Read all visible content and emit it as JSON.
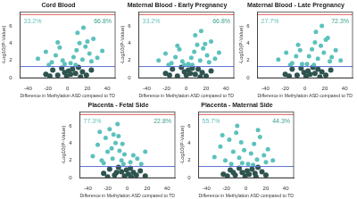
{
  "chart_data": [
    {
      "type": "scatter",
      "title": "Cord Blood",
      "x_label": "Difference in Methylation ASD compared to TD",
      "y_label": "-Log10(P-Value)",
      "xlim": [
        -48,
        48
      ],
      "xticks": [
        -40,
        -20,
        0,
        20,
        40
      ],
      "ylim": [
        0,
        7.6
      ],
      "yticks": [
        0,
        2,
        4,
        6
      ],
      "series": [
        {
          "color": "#2f5450",
          "x": [
            -22,
            -15,
            -10,
            -6,
            -3,
            -1,
            1,
            3,
            5,
            8,
            11,
            15,
            19,
            24,
            -18,
            13
          ],
          "y": [
            0.4,
            0.9,
            0.3,
            1.1,
            0.6,
            0.2,
            0.8,
            0.4,
            1.0,
            0.5,
            1.2,
            0.7,
            0.3,
            0.9,
            0.2,
            0.1
          ]
        },
        {
          "color": "#5cc1bd",
          "x": [
            -30,
            -22,
            -16,
            -12,
            -8,
            -5,
            -3,
            3,
            6,
            9,
            12,
            15,
            18,
            22,
            26,
            30,
            35,
            -19,
            10,
            16,
            20,
            24,
            8,
            -10
          ],
          "y": [
            2.2,
            3.0,
            1.8,
            2.6,
            3.5,
            2.0,
            1.6,
            1.7,
            2.4,
            3.2,
            4.0,
            2.1,
            3.6,
            2.8,
            4.5,
            2.3,
            3.1,
            1.5,
            5.2,
            5.8,
            4.2,
            1.9,
            1.5,
            4.1
          ]
        }
      ],
      "hlines": [
        {
          "y": 7.3,
          "color": "#e05a5a"
        },
        {
          "y": 1.3,
          "color": "#5b6fd6"
        }
      ],
      "annotations": [
        {
          "text": "33.2%",
          "side": "left",
          "color": "#66c2bd"
        },
        {
          "text": "66.8%",
          "side": "right",
          "color": "#3aa08c"
        }
      ]
    },
    {
      "type": "scatter",
      "title": "Maternal Blood - Early Pregnancy",
      "x_label": "Difference in Methylation ASD compared to TD",
      "y_label": "-Log10(P-Value)",
      "xlim": [
        -48,
        48
      ],
      "xticks": [
        -40,
        -20,
        0,
        20,
        40
      ],
      "ylim": [
        0,
        7.6
      ],
      "yticks": [
        0,
        2,
        4,
        6
      ],
      "series": [
        {
          "color": "#2f5450",
          "x": [
            -21,
            -14,
            -9,
            -5,
            -2,
            0,
            2,
            4,
            6,
            9,
            12,
            16,
            20,
            25,
            -17,
            14
          ],
          "y": [
            0.5,
            1.0,
            0.2,
            1.2,
            0.7,
            0.3,
            0.9,
            0.5,
            1.1,
            0.4,
            1.0,
            0.6,
            0.2,
            0.8,
            0.3,
            0.1
          ]
        },
        {
          "color": "#5cc1bd",
          "x": [
            -28,
            -21,
            -15,
            -11,
            -7,
            -4,
            -2,
            2,
            5,
            8,
            11,
            14,
            17,
            21,
            25,
            29,
            33,
            -18,
            9,
            15,
            19,
            23,
            6,
            -9
          ],
          "y": [
            2.0,
            2.8,
            1.7,
            2.4,
            3.3,
            1.9,
            1.5,
            1.6,
            2.3,
            3.0,
            3.8,
            2.0,
            3.4,
            2.6,
            4.2,
            2.2,
            2.9,
            1.5,
            4.9,
            5.4,
            3.9,
            1.8,
            1.5,
            3.7
          ]
        }
      ],
      "hlines": [
        {
          "y": 7.3,
          "color": "#e05a5a"
        },
        {
          "y": 1.3,
          "color": "#5b6fd6"
        }
      ],
      "annotations": [
        {
          "text": "33.2%",
          "side": "left",
          "color": "#66c2bd"
        },
        {
          "text": "66.8%",
          "side": "right",
          "color": "#3aa08c"
        }
      ]
    },
    {
      "type": "scatter",
      "title": "Maternal Blood - Late Pregnancy",
      "x_label": "Difference in Methylation ASD compared to TD",
      "y_label": "-Log10(P-Value)",
      "xlim": [
        -48,
        48
      ],
      "xticks": [
        -40,
        -20,
        0,
        20,
        40
      ],
      "ylim": [
        0,
        7.6
      ],
      "yticks": [
        0,
        2,
        4,
        6
      ],
      "series": [
        {
          "color": "#2f5450",
          "x": [
            -20,
            -13,
            -8,
            -4,
            -1,
            1,
            3,
            5,
            8,
            10,
            13,
            17,
            21,
            26,
            -16,
            15
          ],
          "y": [
            0.4,
            1.0,
            0.3,
            1.1,
            0.6,
            0.2,
            0.8,
            0.4,
            1.2,
            0.5,
            1.0,
            0.7,
            0.3,
            0.9,
            0.2,
            0.1
          ]
        },
        {
          "color": "#5cc1bd",
          "x": [
            -27,
            -19,
            -13,
            -9,
            -5,
            -3,
            2,
            4,
            7,
            10,
            13,
            16,
            19,
            23,
            27,
            31,
            36,
            -15,
            11,
            17,
            21,
            25,
            9,
            -7
          ],
          "y": [
            2.1,
            2.9,
            1.7,
            2.5,
            3.2,
            1.6,
            1.6,
            2.5,
            3.3,
            4.1,
            2.2,
            3.7,
            2.9,
            4.6,
            2.4,
            3.2,
            2.0,
            1.5,
            5.3,
            6.0,
            4.4,
            1.9,
            1.5,
            3.8
          ]
        }
      ],
      "hlines": [
        {
          "y": 7.3,
          "color": "#e05a5a"
        },
        {
          "y": 1.3,
          "color": "#5b6fd6"
        }
      ],
      "annotations": [
        {
          "text": "27.7%",
          "side": "left",
          "color": "#66c2bd"
        },
        {
          "text": "72.3%",
          "side": "right",
          "color": "#3aa08c"
        }
      ]
    },
    {
      "type": "scatter",
      "title": "Placenta - Fetal Side",
      "x_label": "Difference in Methylation ASD compared to TD",
      "y_label": "-Log10(P-Value)",
      "xlim": [
        -48,
        48
      ],
      "xticks": [
        -40,
        -20,
        0,
        20,
        40
      ],
      "ylim": [
        0,
        7.6
      ],
      "yticks": [
        0,
        2,
        4,
        6
      ],
      "series": [
        {
          "color": "#2f5450",
          "x": [
            -24,
            -18,
            -13,
            -9,
            -6,
            -3,
            -1,
            1,
            3,
            6,
            9,
            13,
            18,
            -20,
            -11,
            4
          ],
          "y": [
            0.5,
            1.0,
            0.3,
            1.2,
            0.7,
            0.2,
            0.9,
            0.4,
            1.1,
            0.6,
            0.3,
            0.8,
            0.2,
            0.1,
            0.6,
            0.05
          ]
        },
        {
          "color": "#5cc1bd",
          "x": [
            -35,
            -30,
            -26,
            -22,
            -20,
            -18,
            -15,
            -12,
            -10,
            -8,
            -6,
            -4,
            -3,
            -14,
            -24,
            -9,
            -16,
            -28,
            3,
            6,
            10,
            14,
            18,
            -5
          ],
          "y": [
            2.5,
            3.8,
            2.0,
            4.6,
            3.0,
            5.6,
            2.2,
            4.0,
            6.2,
            3.1,
            2.0,
            1.6,
            2.7,
            5.0,
            1.7,
            4.8,
            3.4,
            5.3,
            1.8,
            2.6,
            2.2,
            1.6,
            3.0,
            3.9
          ]
        }
      ],
      "hlines": [
        {
          "y": 7.3,
          "color": "#e05a5a"
        },
        {
          "y": 1.3,
          "color": "#5b6fd6"
        }
      ],
      "annotations": [
        {
          "text": "77.3%",
          "side": "left",
          "color": "#66c2bd"
        },
        {
          "text": "22.8%",
          "side": "right",
          "color": "#3aa08c"
        }
      ]
    },
    {
      "type": "scatter",
      "title": "Placenta - Maternal Side",
      "x_label": "Difference in Methylation ASD compared to TD",
      "y_label": "-Log10(P-Value)",
      "xlim": [
        -48,
        48
      ],
      "xticks": [
        -40,
        -20,
        0,
        20,
        40
      ],
      "ylim": [
        0,
        7.6
      ],
      "yticks": [
        0,
        2,
        4,
        6
      ],
      "series": [
        {
          "color": "#2f5450",
          "x": [
            -23,
            -16,
            -11,
            -7,
            -4,
            -1,
            1,
            3,
            6,
            9,
            12,
            16,
            20,
            -19,
            -13,
            10
          ],
          "y": [
            0.4,
            0.9,
            0.3,
            1.1,
            0.6,
            0.2,
            0.8,
            0.4,
            1.0,
            0.5,
            1.2,
            0.7,
            0.3,
            0.2,
            0.6,
            0.1
          ]
        },
        {
          "color": "#5cc1bd",
          "x": [
            -32,
            -26,
            -21,
            -17,
            -13,
            -10,
            -7,
            -4,
            -2,
            2,
            5,
            8,
            11,
            14,
            18,
            22,
            27,
            -15,
            -9,
            12,
            -24,
            20,
            7,
            -5
          ],
          "y": [
            2.4,
            3.6,
            2.0,
            4.4,
            3.0,
            5.2,
            2.3,
            1.7,
            3.2,
            1.6,
            2.8,
            3.9,
            2.1,
            4.7,
            2.6,
            3.3,
            2.0,
            1.6,
            6.0,
            5.5,
            4.9,
            1.8,
            1.5,
            4.1
          ]
        }
      ],
      "hlines": [
        {
          "y": 7.3,
          "color": "#e05a5a"
        },
        {
          "y": 1.3,
          "color": "#5b6fd6"
        }
      ],
      "annotations": [
        {
          "text": "55.7%",
          "side": "left",
          "color": "#66c2bd"
        },
        {
          "text": "44.3%",
          "side": "right",
          "color": "#3aa08c"
        }
      ]
    }
  ]
}
